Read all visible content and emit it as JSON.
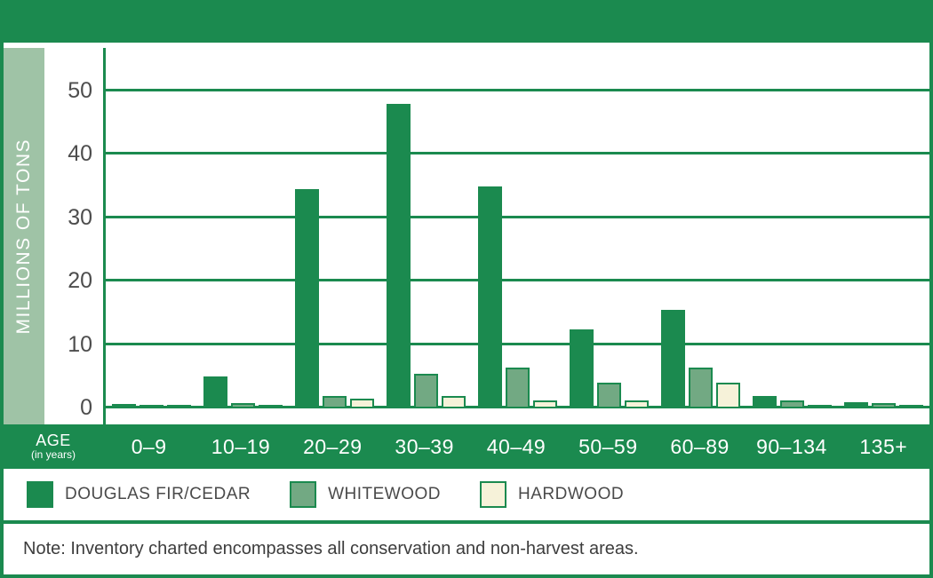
{
  "colors": {
    "primary_green": "#1b8a4f",
    "light_green_strip": "#9fc3a6",
    "whitewood_green": "#72a983",
    "hardwood_cream": "#f6f2d9",
    "tick_label_gray": "#4d4d4d"
  },
  "chart_data": {
    "type": "bar",
    "title": "",
    "ylabel": "MILLIONS OF TONS",
    "xlabel": "AGE (in years)",
    "ylim": [
      0,
      57
    ],
    "y_ticks": [
      0,
      10,
      20,
      30,
      40,
      50
    ],
    "grid": true,
    "legend_position": "bottom",
    "categories": [
      "0–9",
      "10–19",
      "20–29",
      "30–39",
      "40–49",
      "50–59",
      "60–89",
      "90–134",
      "135+"
    ],
    "series": [
      {
        "name": "DOUGLAS FIR/CEDAR",
        "color": "#1b8a4f",
        "border": "",
        "values": [
          0.7,
          5,
          34.5,
          48,
          35,
          12.5,
          15.5,
          2,
          1
        ]
      },
      {
        "name": "WHITEWOOD",
        "color": "#72a983",
        "border": "#1b8a4f",
        "values": [
          0.5,
          0.8,
          2,
          5.5,
          6.5,
          4,
          6.5,
          1.3,
          0.8
        ]
      },
      {
        "name": "HARDWOOD",
        "color": "#f6f2d9",
        "border": "#1b8a4f",
        "values": [
          0.3,
          0.5,
          1.5,
          2,
          1.2,
          1.2,
          4,
          0.6,
          0.3
        ]
      }
    ]
  },
  "chart": {
    "y_axis_title": "MILLIONS OF TONS",
    "x_axis_title": "AGE",
    "x_axis_subtitle": "(in years)"
  },
  "note": {
    "text": "Note: Inventory charted encompasses all conservation and non-harvest areas."
  }
}
